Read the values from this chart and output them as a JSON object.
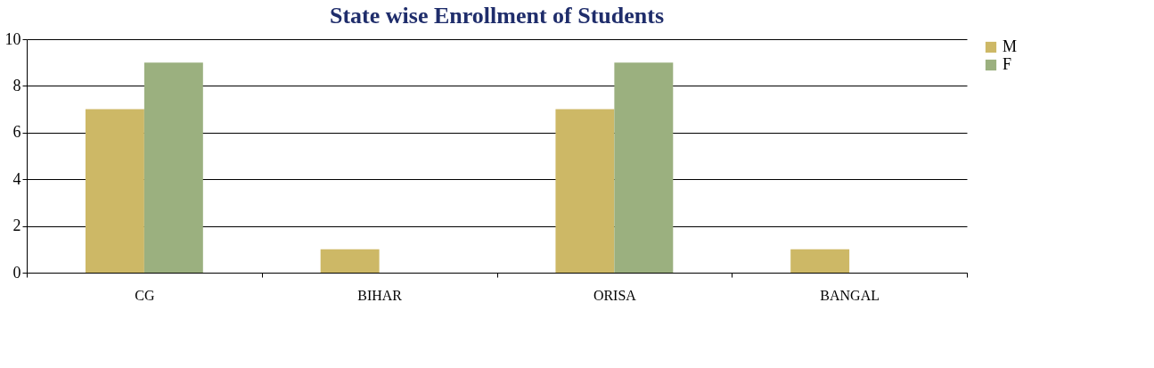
{
  "chart_data": {
    "type": "bar",
    "title": "State wise Enrollment of Students",
    "categories": [
      "CG",
      "BIHAR",
      "ORISA",
      "BANGAL"
    ],
    "series": [
      {
        "name": "M",
        "color": "#cdb866",
        "values": [
          7,
          1,
          7,
          1
        ]
      },
      {
        "name": "F",
        "color": "#9bb07f",
        "values": [
          9,
          0,
          9,
          0
        ]
      }
    ],
    "ylim": [
      0,
      10
    ],
    "yticks": [
      0,
      2,
      4,
      6,
      8,
      10
    ],
    "grid": "y",
    "legend": "right"
  }
}
